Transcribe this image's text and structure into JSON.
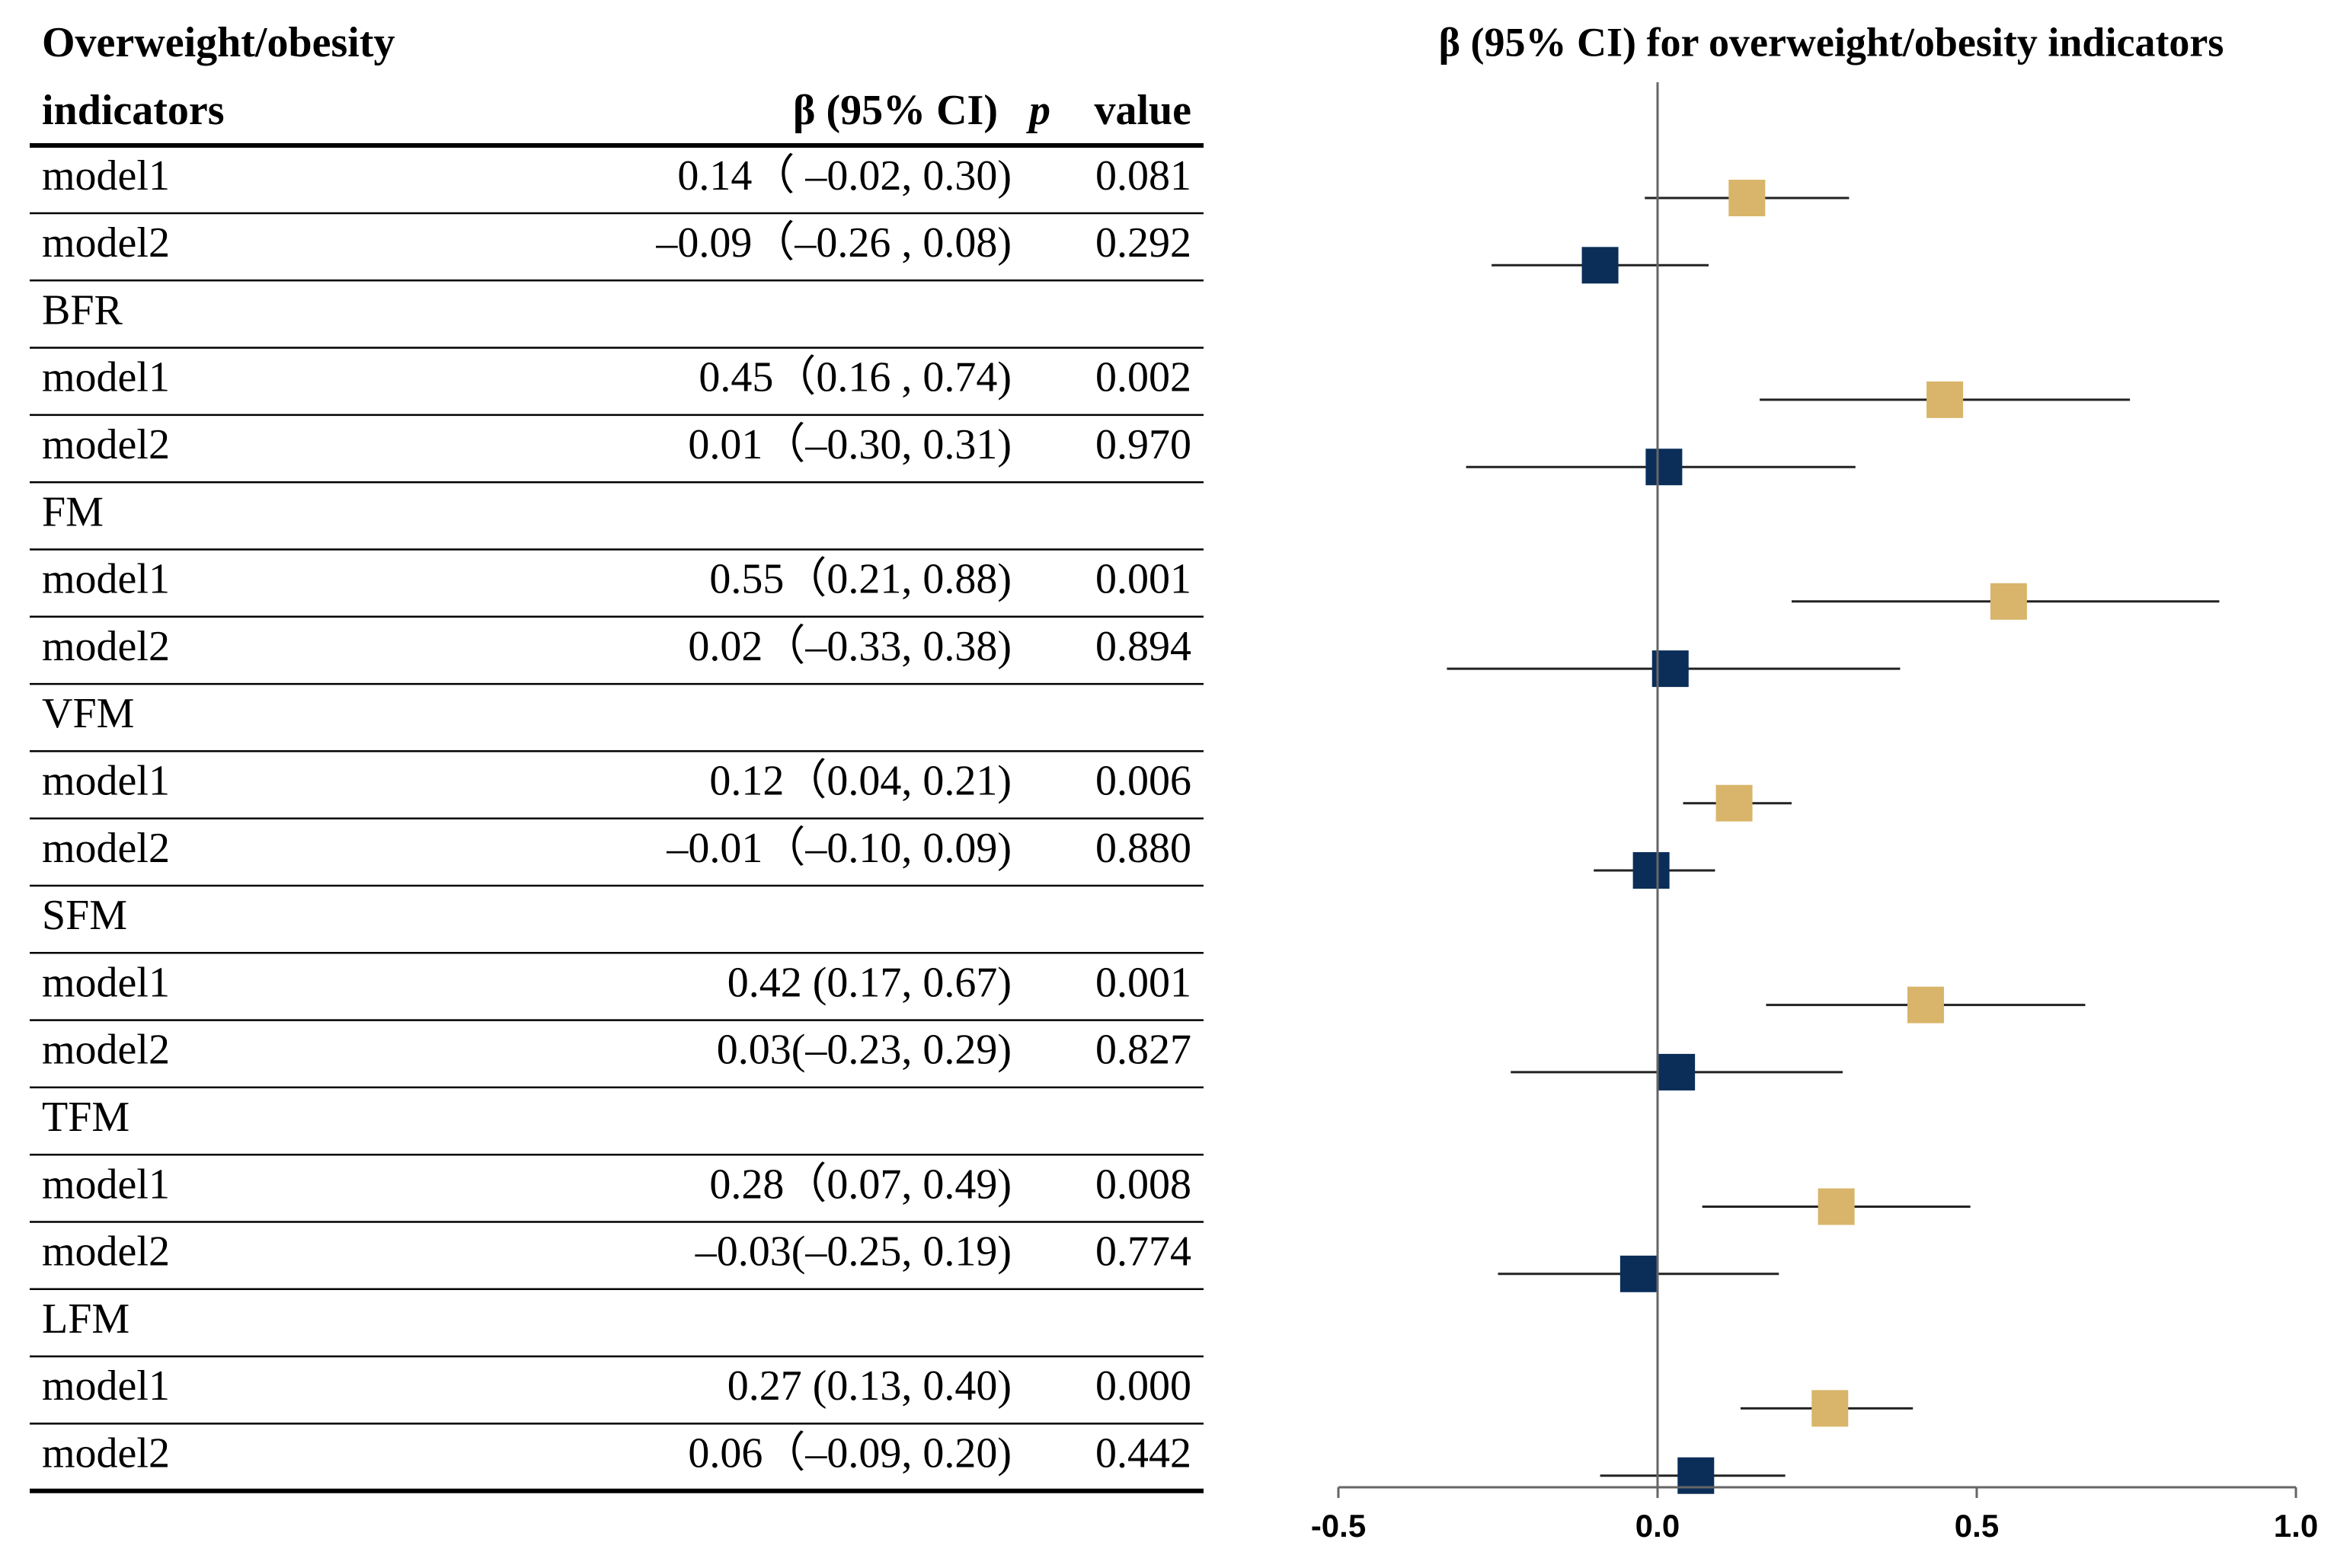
{
  "table": {
    "header": {
      "indicator": [
        "Overweight/obesity",
        "indicators"
      ],
      "beta": "β  (95% CI)",
      "p": "p",
      "value": "value"
    },
    "groups": [
      {
        "rows": [
          {
            "beta": "0.14（ –0.02, 0.30)",
            "p": "0.081"
          },
          {
            "beta": "–0.09（–0.26 , 0.08)",
            "p": "0.292"
          }
        ]
      },
      {
        "rows": [
          {
            "beta": "0.45（0.16 , 0.74)",
            "p": "0.002"
          },
          {
            "beta": "0.01（–0.30, 0.31)",
            "p": "0.970"
          }
        ]
      },
      {
        "rows": [
          {
            "beta": "0.55（0.21, 0.88)",
            "p": "0.001"
          },
          {
            "beta": "0.02（–0.33, 0.38)",
            "p": "0.894"
          }
        ]
      },
      {
        "rows": [
          {
            "beta": "0.12（0.04, 0.21)",
            "p": "0.006"
          },
          {
            "beta": "–0.01（–0.10, 0.09)",
            "p": "0.880"
          }
        ]
      },
      {
        "rows": [
          {
            "beta": "0.42 (0.17, 0.67)",
            "p": "0.001"
          },
          {
            "beta": "0.03(–0.23, 0.29)",
            "p": "0.827"
          }
        ]
      },
      {
        "rows": [
          {
            "beta": "0.28（0.07, 0.49)",
            "p": "0.008"
          },
          {
            "beta": "–0.03(–0.25, 0.19)",
            "p": "0.774"
          }
        ]
      },
      {
        "rows": [
          {
            "beta": "0.27 (0.13, 0.40)",
            "p": "0.000"
          },
          {
            "beta": "0.06（–0.09, 0.20)",
            "p": "0.442"
          }
        ]
      }
    ]
  },
  "chart_data": {
    "type": "forest",
    "title": "β  (95% CI) for overweight/obesity   indicators",
    "categories": [
      null,
      "BFR",
      "FM",
      "VFM",
      "SFM",
      "TFM",
      "LFM"
    ],
    "series": [
      {
        "name": "model1",
        "color": "#d8b56a",
        "values": [
          0.14,
          0.45,
          0.55,
          0.12,
          0.42,
          0.28,
          0.27
        ],
        "lower": [
          -0.02,
          0.16,
          0.21,
          0.04,
          0.17,
          0.07,
          0.13
        ],
        "upper": [
          0.3,
          0.74,
          0.88,
          0.21,
          0.67,
          0.49,
          0.4
        ]
      },
      {
        "name": "model2",
        "color": "#0b2e59",
        "values": [
          -0.09,
          0.01,
          0.02,
          -0.01,
          0.03,
          -0.03,
          0.06
        ],
        "lower": [
          -0.26,
          -0.3,
          -0.33,
          -0.1,
          -0.23,
          -0.25,
          -0.09
        ],
        "upper": [
          0.08,
          0.31,
          0.38,
          0.09,
          0.29,
          0.19,
          0.2
        ]
      }
    ],
    "xlim": [
      -0.5,
      1.0
    ],
    "xticks": [
      -0.5,
      {
        "value": 0.0,
        "label": "0.0"
      },
      0.5,
      {
        "value": 1.0,
        "label": "1.0"
      }
    ]
  }
}
